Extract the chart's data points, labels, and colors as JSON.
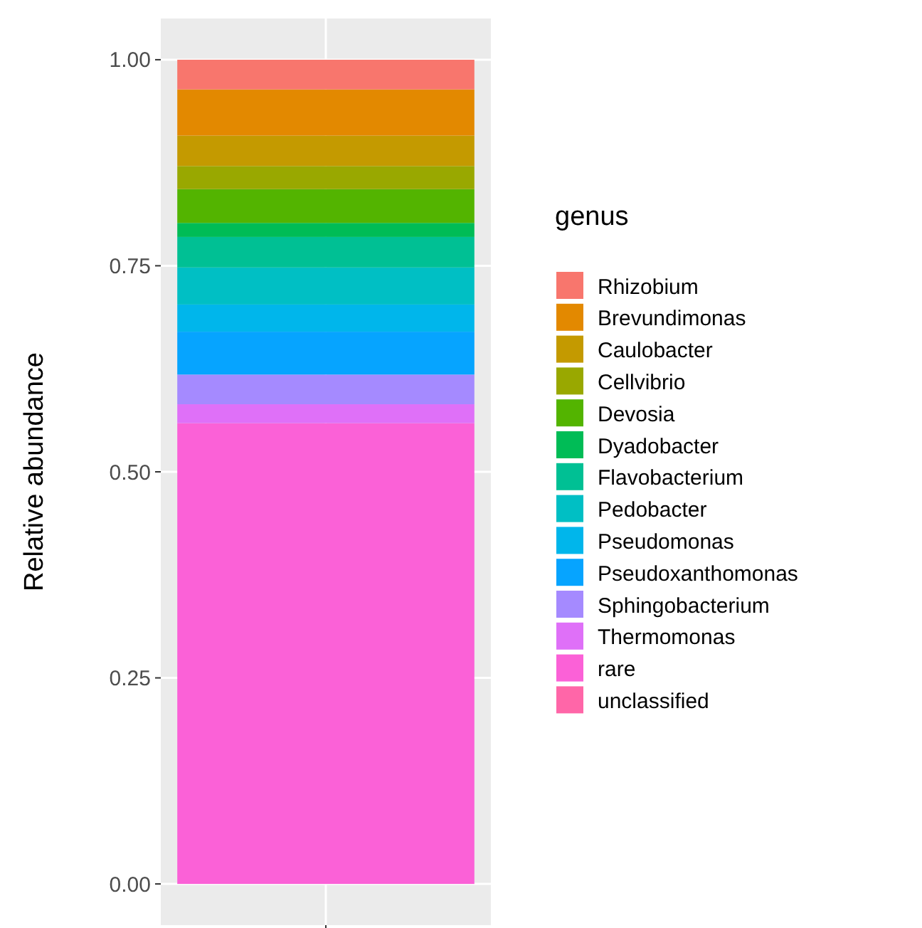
{
  "chart_data": {
    "type": "bar",
    "stacked": true,
    "ylabel": "Relative abundance",
    "legend_title": "genus",
    "legend": "right",
    "grid": true,
    "categories": [
      null
    ],
    "ylim": [
      -0.05,
      1.05
    ],
    "yticks": [
      {
        "value": 0,
        "label": "0.00"
      },
      0.25,
      {
        "value": 0.5,
        "label": "0.50"
      },
      0.75,
      {
        "value": 1,
        "label": "1.00"
      }
    ],
    "series": [
      {
        "name": "unclassified",
        "color": "#ff66a8",
        "values": [
          0
        ]
      },
      {
        "name": "rare",
        "color": "#fb61d7",
        "values": [
          0.559
        ]
      },
      {
        "name": "Thermomonas",
        "color": "#df70f8",
        "values": [
          0.023
        ]
      },
      {
        "name": "Sphingobacterium",
        "color": "#a58aff",
        "values": [
          0.036
        ]
      },
      {
        "name": "Pseudoxanthomonas",
        "color": "#06a4ff",
        "values": [
          0.052
        ]
      },
      {
        "name": "Pseudomonas",
        "color": "#00b6eb",
        "values": [
          0.033
        ]
      },
      {
        "name": "Pedobacter",
        "color": "#00bfc4",
        "values": [
          0.045
        ]
      },
      {
        "name": "Flavobacterium",
        "color": "#00c094",
        "values": [
          0.037
        ]
      },
      {
        "name": "Dyadobacter",
        "color": "#00bc56",
        "values": [
          0.017
        ]
      },
      {
        "name": "Devosia",
        "color": "#53b400",
        "values": [
          0.041
        ]
      },
      {
        "name": "Cellvibrio",
        "color": "#99a800",
        "values": [
          0.028
        ]
      },
      {
        "name": "Caulobacter",
        "color": "#c49a00",
        "values": [
          0.037
        ]
      },
      {
        "name": "Brevundimonas",
        "color": "#e38900",
        "values": [
          0.056
        ]
      },
      {
        "name": "Rhizobium",
        "color": "#f8766d",
        "values": [
          0.036
        ]
      }
    ]
  }
}
